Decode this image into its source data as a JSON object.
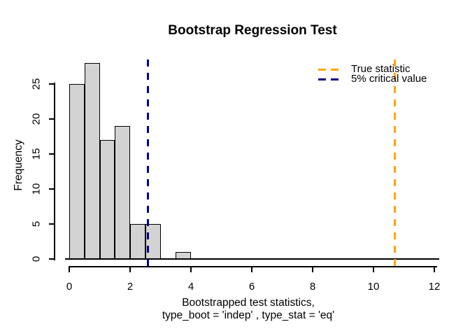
{
  "title": "Bootstrap Regression Test",
  "y_axis": {
    "label": "Frequency"
  },
  "x_axis": {
    "label_line1": "Bootstrapped test statistics,",
    "label_line2": "type_boot = 'indep' , type_stat = 'eq'"
  },
  "legend": {
    "items": [
      {
        "label": "True statistic",
        "color": "#FFA500"
      },
      {
        "label": "5% critical value",
        "color": "#00008B"
      }
    ]
  },
  "colors": {
    "bar_fill": "#D3D3D3",
    "bar_border": "#000000",
    "axis": "#000000",
    "true_statistic_line": "#FFA500",
    "critical_value_line": "#00008B",
    "background": "#FFFFFF"
  },
  "chart_data": {
    "type": "bar",
    "subtype": "histogram",
    "title": "Bootstrap Regression Test",
    "xlabel": "Bootstrapped test statistics, type_boot = 'indep' , type_stat = 'eq'",
    "ylabel": "Frequency",
    "bin_edges": [
      0,
      0.5,
      1,
      1.5,
      2,
      2.5,
      3,
      3.5,
      4
    ],
    "counts": [
      25,
      28,
      17,
      19,
      5,
      5,
      0,
      1
    ],
    "xlim": [
      0,
      12
    ],
    "ylim": [
      0,
      25
    ],
    "x_ticks": [
      0,
      2,
      4,
      6,
      8,
      10,
      12
    ],
    "y_ticks": [
      0,
      5,
      10,
      15,
      20,
      25
    ],
    "vlines": [
      {
        "x": 2.57,
        "label": "5% critical value",
        "color": "#00008B",
        "style": "dashed"
      },
      {
        "x": 10.69,
        "label": "True statistic",
        "color": "#FFA500",
        "style": "dashed"
      }
    ],
    "legend_position": "topright",
    "grid": false
  }
}
